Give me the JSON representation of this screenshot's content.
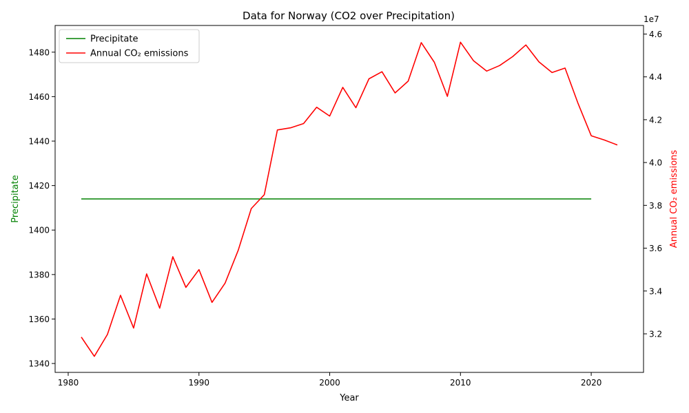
{
  "chart_data": {
    "type": "line",
    "title": "Data for Norway (CO2 over Precipitation)",
    "xlabel": "Year",
    "ylabel_left": "Precipitate",
    "ylabel_right": "Annual CO₂ emissions",
    "right_axis_offset_label": "1e7",
    "xlim": [
      1979,
      2024
    ],
    "ylim_left": [
      1336,
      1492
    ],
    "ylim_right": [
      30200000,
      46400000
    ],
    "x_ticks": [
      1980,
      1990,
      2000,
      2010,
      2020
    ],
    "y_ticks_left": [
      1340,
      1360,
      1380,
      1400,
      1420,
      1440,
      1460,
      1480
    ],
    "y_ticks_right": [
      32000000,
      34000000,
      36000000,
      38000000,
      40000000,
      42000000,
      44000000,
      46000000
    ],
    "y_tick_labels_right": [
      "3.2",
      "3.4",
      "3.6",
      "3.8",
      "4.0",
      "4.2",
      "4.4",
      "4.6"
    ],
    "legend_position": "top-left",
    "grid": false,
    "series": [
      {
        "name": "Precipitate",
        "axis": "left",
        "color": "#008000",
        "x": [
          1981,
          2020
        ],
        "values": [
          1414,
          1414
        ]
      },
      {
        "name": "Annual CO₂ emissions",
        "axis": "right",
        "color": "#ff0000",
        "x": [
          1981,
          1982,
          1983,
          1984,
          1985,
          1986,
          1987,
          1988,
          1989,
          1990,
          1991,
          1992,
          1993,
          1994,
          1995,
          1996,
          1997,
          1998,
          1999,
          2000,
          2001,
          2002,
          2003,
          2004,
          2005,
          2006,
          2007,
          2008,
          2009,
          2010,
          2011,
          2012,
          2013,
          2014,
          2015,
          2016,
          2017,
          2018,
          2019,
          2020,
          2021,
          2022
        ],
        "values": [
          31850000,
          30950000,
          31970000,
          33800000,
          32270000,
          34800000,
          33200000,
          35600000,
          34170000,
          35000000,
          33470000,
          34370000,
          35900000,
          37850000,
          38500000,
          41520000,
          41620000,
          41820000,
          42580000,
          42170000,
          43510000,
          42560000,
          43910000,
          44240000,
          43250000,
          43800000,
          45600000,
          44680000,
          43090000,
          45620000,
          44750000,
          44270000,
          44530000,
          44950000,
          45490000,
          44700000,
          44200000,
          44410000,
          42750000,
          41250000,
          41050000,
          40820000
        ]
      }
    ]
  }
}
